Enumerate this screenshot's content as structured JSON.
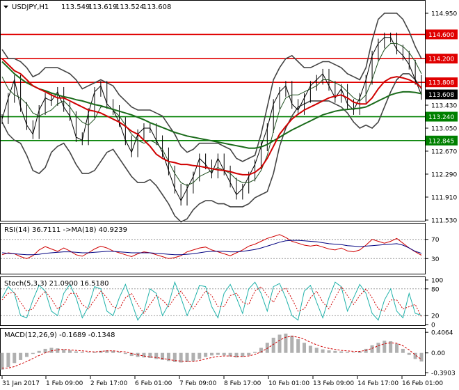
{
  "chart_data": [
    {
      "type": "line",
      "panel": "price",
      "title": "USDJPY,H1",
      "ohlc_header": [
        "113.549",
        "113.619",
        "113.524",
        "113.608"
      ],
      "ylim": [
        111.53,
        115.1
      ],
      "y_ticks": [
        "114.950",
        "114.570",
        "114.190",
        "113.810",
        "113.430",
        "113.050",
        "112.670",
        "112.290",
        "111.910",
        "111.530"
      ],
      "levels": [
        {
          "value": 114.6,
          "label": "114.600",
          "color": "#e00000"
        },
        {
          "value": 114.2,
          "label": "114.200",
          "color": "#e00000"
        },
        {
          "value": 113.808,
          "label": "113.808",
          "color": "#e00000"
        },
        {
          "value": 113.24,
          "label": "113.240",
          "color": "#008000"
        },
        {
          "value": 112.845,
          "label": "112.845",
          "color": "#008000"
        }
      ],
      "last_price": {
        "value": 113.608,
        "label": "113.608"
      },
      "series": [
        {
          "role": "close",
          "color": "#000000",
          "values": [
            113.2,
            113.55,
            113.85,
            113.4,
            113.1,
            112.95,
            113.35,
            113.55,
            113.5,
            113.65,
            113.4,
            113.25,
            112.9,
            112.85,
            113.3,
            113.65,
            113.75,
            113.45,
            113.35,
            113.15,
            112.85,
            112.65,
            112.95,
            113.05,
            113.05,
            112.85,
            112.65,
            112.35,
            112.05,
            111.85,
            112.05,
            112.25,
            112.55,
            112.45,
            112.3,
            112.55,
            112.35,
            112.15,
            111.95,
            112.05,
            112.25,
            112.45,
            112.75,
            113.05,
            113.45,
            113.65,
            113.75,
            113.45,
            113.35,
            113.55,
            113.75,
            113.85,
            113.95,
            113.75,
            113.55,
            113.7,
            113.45,
            113.35,
            113.55,
            113.85,
            114.25,
            114.45,
            114.55,
            114.55,
            114.35,
            114.25,
            114.1,
            113.85,
            113.6
          ]
        },
        {
          "role": "bb_upper",
          "color": "#444444",
          "values": [
            114.35,
            114.2,
            114.2,
            114.15,
            114.05,
            113.9,
            113.95,
            114.05,
            114.05,
            114.05,
            114.0,
            113.95,
            113.85,
            113.7,
            113.75,
            113.8,
            113.85,
            113.8,
            113.75,
            113.6,
            113.5,
            113.4,
            113.35,
            113.35,
            113.35,
            113.3,
            113.25,
            113.1,
            112.95,
            112.75,
            112.65,
            112.7,
            112.8,
            112.8,
            112.8,
            112.8,
            112.75,
            112.7,
            112.55,
            112.5,
            112.55,
            112.6,
            112.95,
            113.4,
            113.85,
            114.05,
            114.2,
            114.25,
            114.15,
            114.05,
            114.05,
            114.1,
            114.15,
            114.15,
            114.1,
            114.05,
            113.95,
            113.9,
            113.85,
            114.05,
            114.5,
            114.85,
            114.95,
            114.95,
            114.95,
            114.85,
            114.65,
            114.4,
            114.2
          ]
        },
        {
          "role": "bb_lower",
          "color": "#444444",
          "values": [
            113.15,
            112.95,
            112.85,
            112.8,
            112.6,
            112.35,
            112.3,
            112.4,
            112.65,
            112.75,
            112.8,
            112.65,
            112.45,
            112.3,
            112.3,
            112.35,
            112.5,
            112.65,
            112.7,
            112.55,
            112.4,
            112.25,
            112.15,
            112.15,
            112.2,
            112.1,
            111.95,
            111.8,
            111.6,
            111.5,
            111.55,
            111.7,
            111.8,
            111.85,
            111.85,
            111.8,
            111.8,
            111.75,
            111.75,
            111.75,
            111.8,
            111.9,
            111.95,
            112.0,
            112.3,
            112.75,
            113.05,
            113.25,
            113.4,
            113.45,
            113.5,
            113.5,
            113.5,
            113.5,
            113.45,
            113.4,
            113.3,
            113.15,
            113.05,
            113.1,
            113.05,
            113.15,
            113.4,
            113.65,
            113.85,
            113.95,
            113.95,
            113.85,
            113.7
          ]
        },
        {
          "role": "ma_fast",
          "color": "#1f4f1f",
          "values": [
            113.9,
            113.7,
            113.6,
            113.55,
            113.45,
            113.3,
            113.25,
            113.3,
            113.35,
            113.45,
            113.5,
            113.4,
            113.25,
            113.15,
            113.1,
            113.2,
            113.4,
            113.4,
            113.35,
            113.25,
            113.1,
            112.95,
            112.85,
            112.8,
            112.85,
            112.8,
            112.7,
            112.5,
            112.3,
            112.15,
            112.1,
            112.15,
            112.25,
            112.3,
            112.35,
            112.4,
            112.35,
            112.3,
            112.2,
            112.15,
            112.15,
            112.2,
            112.35,
            112.6,
            113.0,
            113.35,
            113.55,
            113.6,
            113.6,
            113.65,
            113.7,
            113.75,
            113.85,
            113.85,
            113.8,
            113.75,
            113.65,
            113.55,
            113.5,
            113.6,
            113.85,
            114.15,
            114.35,
            114.45,
            114.45,
            114.4,
            114.3,
            114.15,
            113.95
          ]
        },
        {
          "role": "ma_red",
          "color": "#d00000",
          "values": [
            114.2,
            114.1,
            114.0,
            113.95,
            113.85,
            113.75,
            113.7,
            113.65,
            113.6,
            113.55,
            113.55,
            113.5,
            113.45,
            113.4,
            113.35,
            113.33,
            113.3,
            113.25,
            113.2,
            113.15,
            113.08,
            113.0,
            112.95,
            112.85,
            112.75,
            112.62,
            112.55,
            112.5,
            112.48,
            112.45,
            112.45,
            112.43,
            112.42,
            112.4,
            112.38,
            112.36,
            112.35,
            112.33,
            112.3,
            112.28,
            112.28,
            112.32,
            112.4,
            112.55,
            112.75,
            112.95,
            113.08,
            113.2,
            113.28,
            113.35,
            113.4,
            113.45,
            113.5,
            113.55,
            113.58,
            113.6,
            113.55,
            113.48,
            113.45,
            113.45,
            113.55,
            113.7,
            113.82,
            113.88,
            113.9,
            113.88,
            113.85,
            113.8,
            113.72
          ]
        },
        {
          "role": "ma_green",
          "color": "#1a6b1a",
          "values": [
            114.15,
            114.05,
            113.95,
            113.87,
            113.8,
            113.75,
            113.7,
            113.67,
            113.63,
            113.6,
            113.57,
            113.55,
            113.52,
            113.5,
            113.47,
            113.44,
            113.42,
            113.39,
            113.36,
            113.33,
            113.3,
            113.27,
            113.23,
            113.19,
            113.14,
            113.1,
            113.06,
            113.02,
            112.98,
            112.95,
            112.92,
            112.9,
            112.88,
            112.86,
            112.84,
            112.82,
            112.8,
            112.78,
            112.76,
            112.74,
            112.72,
            112.72,
            112.74,
            112.78,
            112.84,
            112.9,
            112.96,
            113.02,
            113.07,
            113.12,
            113.17,
            113.22,
            113.27,
            113.3,
            113.33,
            113.35,
            113.36,
            113.37,
            113.38,
            113.4,
            113.45,
            113.5,
            113.55,
            113.6,
            113.63,
            113.65,
            113.65,
            113.64,
            113.62
          ]
        }
      ]
    },
    {
      "type": "line",
      "panel": "rsi",
      "title": "RSI(14) 36.7111 ->MA(18) 40.9239",
      "ylim": [
        0,
        100
      ],
      "y_ticks": [
        "70",
        "30"
      ],
      "levels": [
        70,
        30
      ],
      "series": [
        {
          "role": "rsi",
          "color": "#d00000",
          "values": [
            38,
            42,
            40,
            34,
            30,
            36,
            48,
            55,
            50,
            45,
            52,
            46,
            38,
            35,
            42,
            50,
            56,
            52,
            46,
            42,
            38,
            34,
            40,
            44,
            42,
            38,
            34,
            30,
            32,
            36,
            44,
            48,
            52,
            54,
            48,
            44,
            40,
            36,
            42,
            48,
            56,
            60,
            66,
            72,
            76,
            80,
            74,
            66,
            62,
            58,
            56,
            58,
            54,
            50,
            48,
            52,
            46,
            44,
            48,
            58,
            70,
            66,
            62,
            66,
            72,
            62,
            52,
            44,
            37
          ]
        },
        {
          "role": "rsi_ma",
          "color": "#000080",
          "values": [
            42,
            41,
            40,
            39,
            38,
            38,
            39,
            41,
            42,
            43,
            44,
            44,
            43,
            42,
            42,
            43,
            44,
            45,
            45,
            44,
            43,
            42,
            42,
            42,
            42,
            41,
            40,
            39,
            38,
            38,
            39,
            40,
            42,
            44,
            45,
            45,
            45,
            44,
            44,
            45,
            47,
            49,
            52,
            56,
            60,
            64,
            67,
            68,
            68,
            67,
            66,
            65,
            63,
            61,
            60,
            59,
            57,
            56,
            55,
            56,
            57,
            58,
            59,
            60,
            61,
            58,
            52,
            45,
            41
          ]
        }
      ]
    },
    {
      "type": "line",
      "panel": "stochastic",
      "title": "Stoch(5,3,3) 21.0900 16.5180",
      "ylim": [
        0,
        100
      ],
      "y_ticks": [
        "100",
        "80",
        "20",
        "0"
      ],
      "levels": [
        80,
        20
      ],
      "series": [
        {
          "role": "stoch_main",
          "color": "#20b2aa",
          "values": [
            60,
            85,
            70,
            20,
            15,
            55,
            88,
            75,
            30,
            20,
            70,
            90,
            60,
            15,
            40,
            85,
            80,
            30,
            20,
            60,
            90,
            50,
            10,
            30,
            80,
            70,
            20,
            45,
            95,
            60,
            20,
            50,
            88,
            85,
            40,
            15,
            70,
            90,
            60,
            25,
            80,
            95,
            70,
            30,
            85,
            92,
            60,
            20,
            10,
            75,
            88,
            50,
            15,
            60,
            95,
            85,
            30,
            60,
            90,
            70,
            25,
            10,
            55,
            80,
            30,
            15,
            70,
            25,
            21
          ]
        },
        {
          "role": "stoch_signal",
          "color": "#d00000",
          "values": [
            55,
            70,
            72,
            50,
            30,
            35,
            60,
            75,
            58,
            35,
            45,
            70,
            70,
            45,
            35,
            55,
            75,
            60,
            40,
            35,
            60,
            70,
            45,
            25,
            45,
            65,
            55,
            40,
            60,
            75,
            55,
            35,
            55,
            75,
            65,
            40,
            40,
            65,
            70,
            50,
            45,
            75,
            85,
            65,
            50,
            75,
            82,
            58,
            30,
            35,
            60,
            75,
            50,
            35,
            60,
            85,
            65,
            45,
            65,
            80,
            60,
            35,
            30,
            55,
            55,
            35,
            40,
            45,
            17
          ]
        }
      ]
    },
    {
      "type": "bar",
      "panel": "macd",
      "title": "MACD(12,26,9) -0.1689 -0.1348",
      "ylim": [
        -0.43,
        0.45
      ],
      "y_ticks": [
        "0.4064",
        "0.00",
        "-0.3903"
      ],
      "x_ticks": [
        "31 Jan 2017",
        "1 Feb 09:00",
        "2 Feb 17:00",
        "6 Feb 01:00",
        "7 Feb 09:00",
        "8 Feb 17:00",
        "10 Feb 01:00",
        "13 Feb 09:00",
        "14 Feb 17:00",
        "16 Feb 01:00"
      ],
      "series": [
        {
          "role": "macd_hist",
          "color": "#b0b0b0",
          "values": [
            -0.33,
            -0.28,
            -0.2,
            -0.14,
            -0.08,
            -0.02,
            0.04,
            0.08,
            0.1,
            0.09,
            0.07,
            0.05,
            0.03,
            0.02,
            0.01,
            0.02,
            0.04,
            0.05,
            0.04,
            0.02,
            -0.02,
            -0.06,
            -0.08,
            -0.09,
            -0.1,
            -0.12,
            -0.14,
            -0.16,
            -0.18,
            -0.19,
            -0.18,
            -0.16,
            -0.12,
            -0.08,
            -0.05,
            -0.04,
            -0.05,
            -0.07,
            -0.09,
            -0.08,
            -0.05,
            0.02,
            0.1,
            0.2,
            0.3,
            0.36,
            0.38,
            0.34,
            0.27,
            0.2,
            0.14,
            0.1,
            0.07,
            0.05,
            0.04,
            0.03,
            0.02,
            0.01,
            0.03,
            0.08,
            0.15,
            0.2,
            0.24,
            0.23,
            0.18,
            0.08,
            -0.04,
            -0.12,
            -0.17
          ]
        },
        {
          "role": "macd_signal",
          "color": "#d00000",
          "values": [
            -0.3,
            -0.3,
            -0.27,
            -0.22,
            -0.17,
            -0.11,
            -0.05,
            0.0,
            0.04,
            0.06,
            0.07,
            0.06,
            0.05,
            0.04,
            0.03,
            0.02,
            0.03,
            0.04,
            0.04,
            0.03,
            0.02,
            -0.01,
            -0.04,
            -0.06,
            -0.08,
            -0.09,
            -0.11,
            -0.13,
            -0.15,
            -0.16,
            -0.17,
            -0.17,
            -0.15,
            -0.12,
            -0.09,
            -0.07,
            -0.06,
            -0.06,
            -0.07,
            -0.07,
            -0.06,
            -0.03,
            0.02,
            0.09,
            0.17,
            0.25,
            0.31,
            0.33,
            0.31,
            0.27,
            0.21,
            0.16,
            0.12,
            0.09,
            0.07,
            0.05,
            0.04,
            0.03,
            0.03,
            0.05,
            0.09,
            0.14,
            0.18,
            0.2,
            0.19,
            0.14,
            0.06,
            -0.04,
            -0.13
          ]
        }
      ]
    }
  ]
}
